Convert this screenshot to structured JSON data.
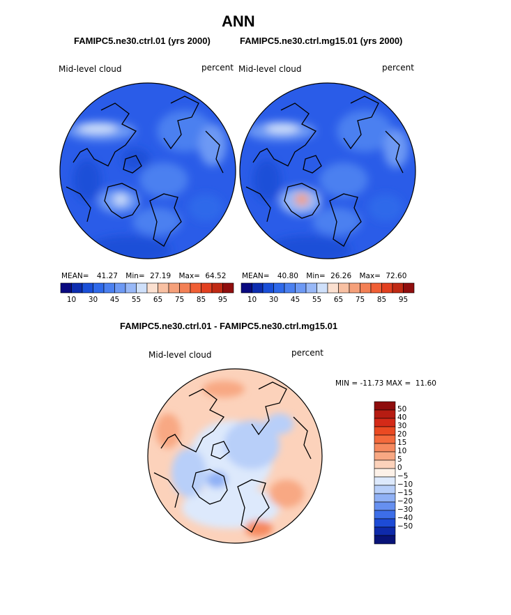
{
  "title": "ANN",
  "panels": [
    {
      "run": "FAMIPC5.ne30.ctrl.01 (yrs 2000)",
      "variable": "Mid-level cloud",
      "units": "percent",
      "mean_label": "MEAN=",
      "mean": "41.27",
      "min_label": "Min=",
      "min": "27.19",
      "max_label": "Max=",
      "max": "64.52"
    },
    {
      "run": "FAMIPC5.ne30.ctrl.mg15.01 (yrs 2000)",
      "variable": "Mid-level cloud",
      "units": "percent",
      "mean_label": "MEAN=",
      "mean": "40.80",
      "min_label": "Min=",
      "min": "26.26",
      "max_label": "Max=",
      "max": "72.60"
    }
  ],
  "colorbar_horizontal": {
    "colors": [
      "#0a0a80",
      "#0d2db0",
      "#1a4fd8",
      "#2f69ea",
      "#4b80f0",
      "#6d99f4",
      "#98b8f7",
      "#cfe0fa",
      "#fbe0d0",
      "#f8c0a2",
      "#f5a07a",
      "#f38055",
      "#f05f35",
      "#e24020",
      "#c02a14",
      "#900e0e"
    ],
    "tick_labels": [
      "10",
      "30",
      "45",
      "55",
      "65",
      "75",
      "85",
      "95"
    ]
  },
  "difference_panel": {
    "title": "FAMIPC5.ne30.ctrl.01 - FAMIPC5.ne30.ctrl.mg15.01",
    "variable": "Mid-level cloud",
    "units": "percent",
    "range_text": "MIN = -11.73 MAX =  11.60"
  },
  "colorbar_vertical": {
    "colors": [
      "#8e0d0d",
      "#b61c12",
      "#d42a18",
      "#ea4a22",
      "#f46a3c",
      "#f6895e",
      "#f8a883",
      "#fcd2bb",
      "#fdf1e8",
      "#dde9fc",
      "#b8cff9",
      "#90b1f5",
      "#6690f0",
      "#3d6ee8",
      "#1d4bd6",
      "#0e2aaa",
      "#081378"
    ],
    "tick_labels": [
      "50",
      "40",
      "30",
      "20",
      "15",
      "10",
      "5",
      "0",
      "-5",
      "-10",
      "-15",
      "-20",
      "-30",
      "-40",
      "-50"
    ]
  }
}
